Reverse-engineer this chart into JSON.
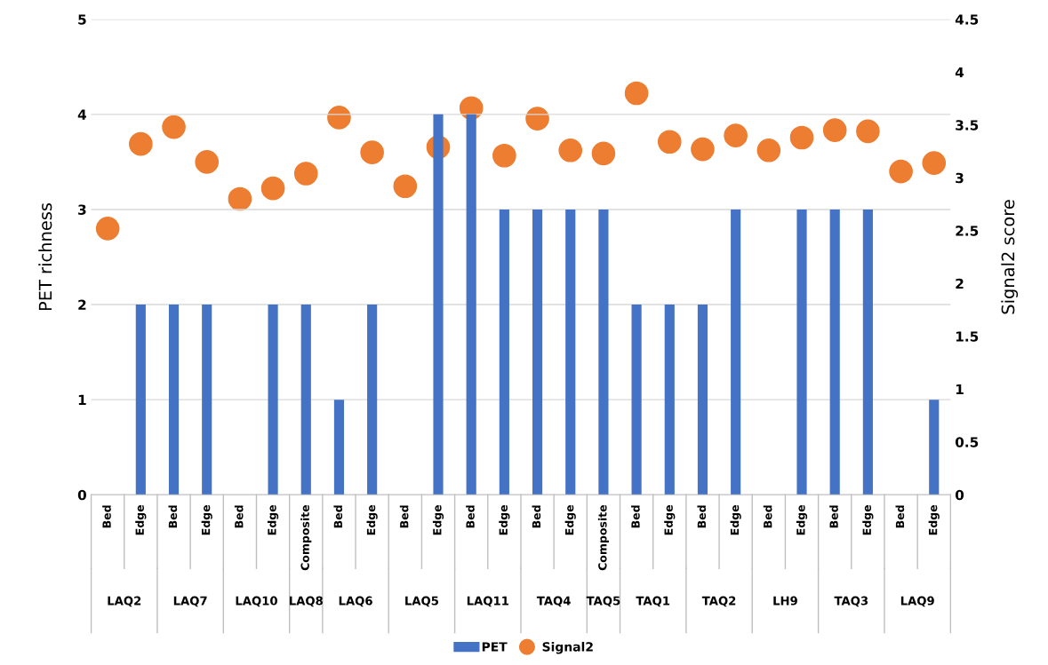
{
  "chart_data": {
    "type": "bar",
    "categories": [
      "Bed",
      "Edge",
      "Bed",
      "Edge",
      "Bed",
      "Edge",
      "Composite",
      "Bed",
      "Edge",
      "Bed",
      "Edge",
      "Bed",
      "Edge",
      "Bed",
      "Edge",
      "Composite",
      "Bed",
      "Edge",
      "Bed",
      "Edge",
      "Bed",
      "Edge",
      "Bed",
      "Edge",
      "Bed",
      "Edge"
    ],
    "annotations": [
      "LAQ2",
      "LAQ7",
      "LAQ10",
      "LAQ8",
      "LAQ6",
      "LAQ5",
      "LAQ11",
      "TAQ4",
      "TAQ5",
      "TAQ1",
      "TAQ2",
      "LH9",
      "TAQ3",
      "LAQ9"
    ],
    "series": [
      {
        "name": "PET",
        "color": "#4472c4",
        "values": [
          0,
          2,
          2,
          2,
          0,
          2,
          2,
          1,
          2,
          0,
          4,
          4,
          3,
          3,
          3,
          3,
          2,
          2,
          2,
          3,
          0,
          3,
          3,
          3,
          0,
          1
        ]
      },
      {
        "name": "Signal2",
        "type": "scatter",
        "axis": "y2",
        "color": "#ed7d31",
        "marker": "circle",
        "values": [
          2.52,
          3.32,
          3.48,
          3.15,
          2.8,
          2.9,
          3.04,
          3.57,
          3.24,
          2.92,
          3.29,
          3.66,
          3.21,
          3.56,
          3.26,
          3.23,
          3.8,
          3.34,
          3.27,
          3.4,
          3.26,
          3.38,
          3.45,
          3.44,
          3.06,
          3.14
        ]
      }
    ],
    "ylabel": "PET richness",
    "y2label": "Signal2 score",
    "ylim": [
      0,
      5
    ],
    "yticks": [
      0,
      1,
      2,
      3,
      4,
      5
    ],
    "y2lim": [
      0,
      4.5
    ],
    "y2ticks": [
      0,
      0.5,
      1,
      1.5,
      2,
      2.5,
      3,
      3.5,
      4,
      4.5
    ],
    "grid": "y",
    "legend": "bottom"
  }
}
